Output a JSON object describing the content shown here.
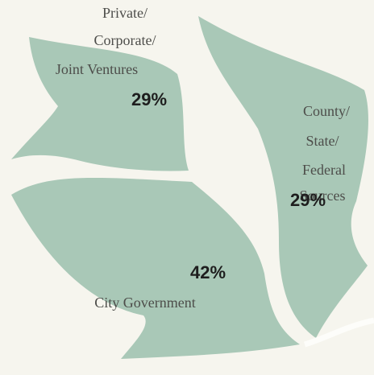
{
  "chart_data": {
    "type": "pie",
    "categories": [
      [
        "Private/",
        "Corporate/",
        "Joint Ventures"
      ],
      [
        "County/",
        "State/",
        "Federal",
        "Sources"
      ],
      [
        "City Government"
      ]
    ],
    "values": [
      29,
      29,
      42
    ],
    "value_labels": [
      "29%",
      "29%",
      "42%"
    ],
    "color": "#a9c8b7"
  }
}
